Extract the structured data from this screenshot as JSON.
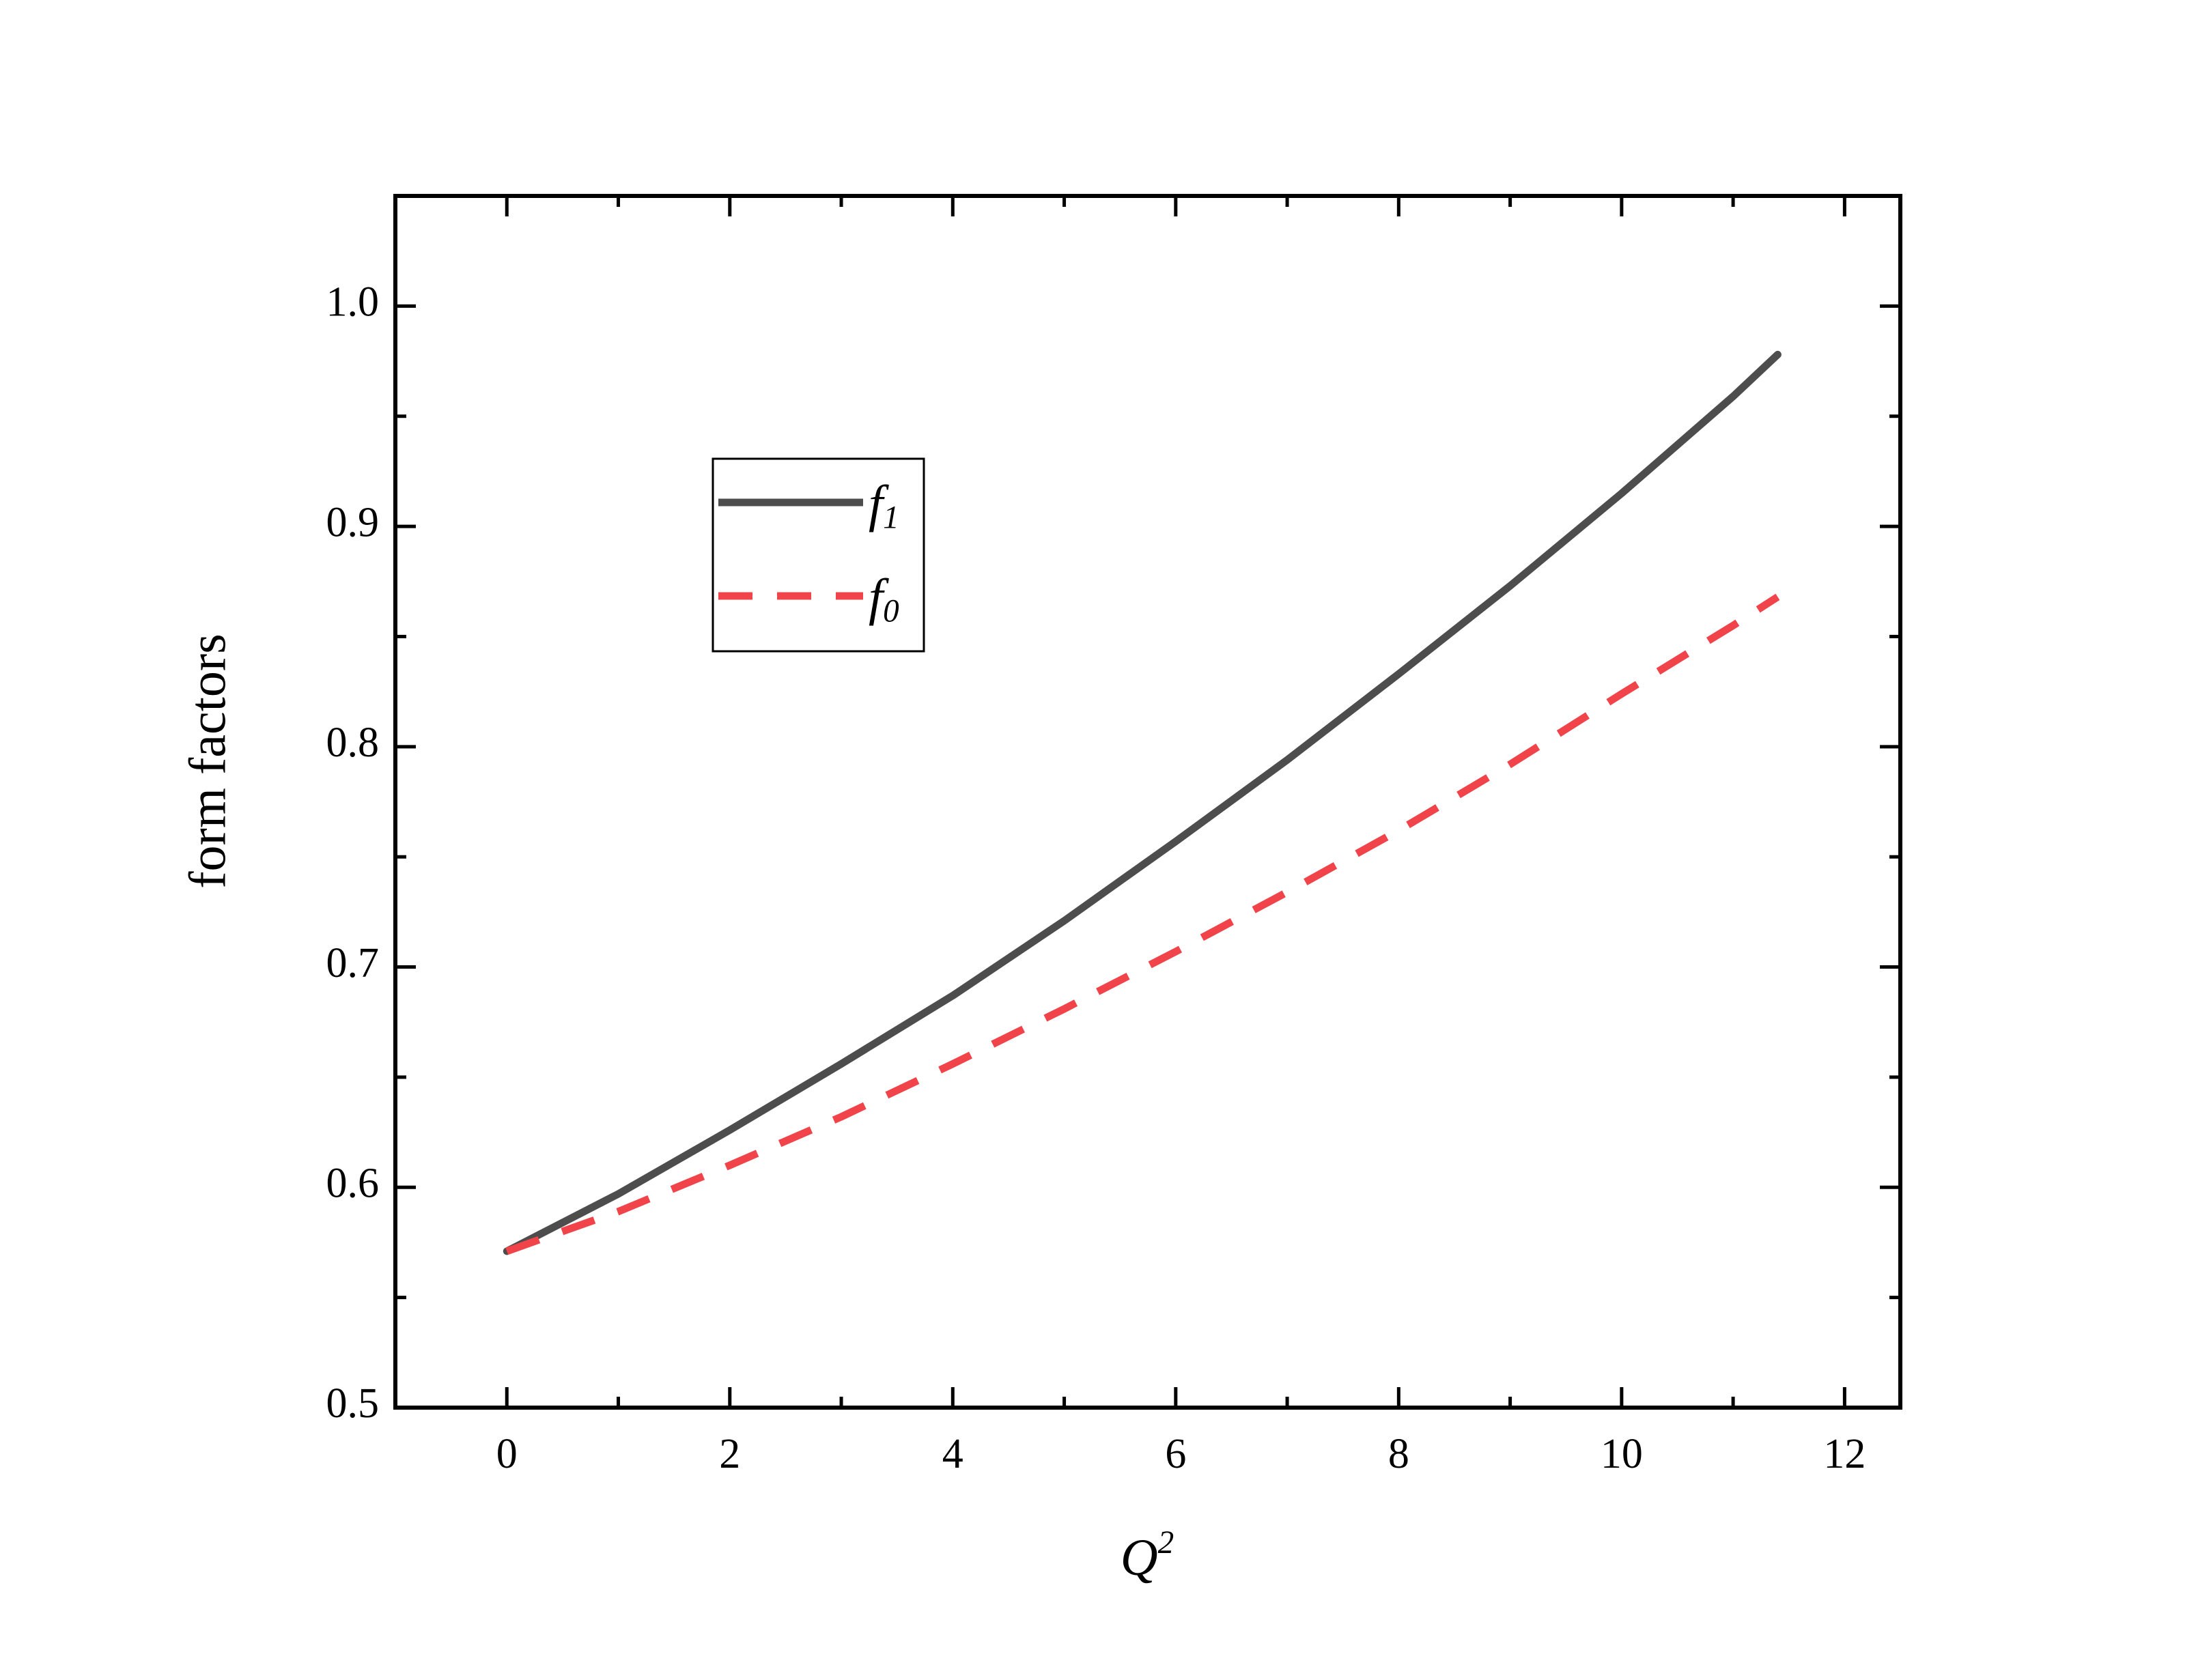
{
  "chart_data": {
    "type": "line",
    "xlabel": "Q2",
    "ylabel": "form factors",
    "x": [
      0,
      1,
      2,
      3,
      4,
      5,
      6,
      7,
      8,
      9,
      10,
      11,
      11.4
    ],
    "series": [
      {
        "name": "f1",
        "color": "#4d4d4d",
        "dash": false,
        "values": [
          0.571,
          0.597,
          0.626,
          0.656,
          0.687,
          0.721,
          0.757,
          0.794,
          0.833,
          0.873,
          0.915,
          0.959,
          0.978
        ]
      },
      {
        "name": "f0",
        "color": "#f0444a",
        "dash": true,
        "values": [
          0.571,
          0.589,
          0.61,
          0.632,
          0.656,
          0.681,
          0.707,
          0.734,
          0.762,
          0.792,
          0.824,
          0.855,
          0.868
        ]
      }
    ],
    "xlim": [
      -1,
      12.5
    ],
    "xticks": [
      0,
      2,
      4,
      6,
      8,
      10,
      12
    ],
    "ylim": [
      0.5,
      1.05
    ],
    "yticks": [
      {
        "value": 0.5,
        "label": "0.5"
      },
      {
        "value": 0.6,
        "label": "0.6"
      },
      {
        "value": 0.7,
        "label": "0.7"
      },
      {
        "value": 0.8,
        "label": "0.8"
      },
      {
        "value": 0.9,
        "label": "0.9"
      },
      {
        "value": 1.0,
        "label": "1.0"
      }
    ],
    "grid": false
  }
}
